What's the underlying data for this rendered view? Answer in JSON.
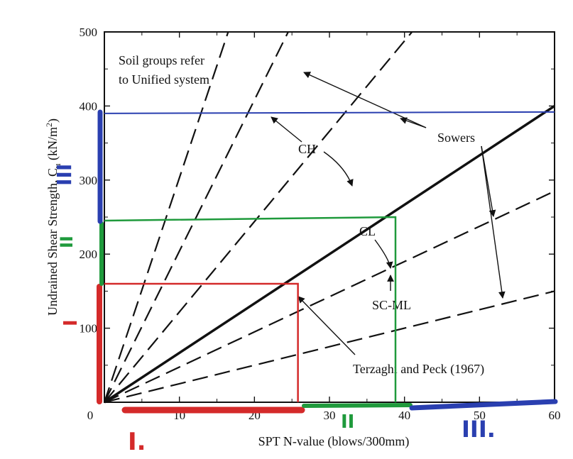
{
  "chart_data": {
    "type": "line",
    "title": "",
    "xlabel": "SPT N-value (blows/300mm)",
    "ylabel": "Undrained Shear Strength, C",
    "ylabel_sub": "u",
    "ylabel_unit_pre": "(kN/m",
    "ylabel_unit_sup": "2",
    "ylabel_unit_post": ")",
    "xlim": [
      0,
      60
    ],
    "ylim": [
      0,
      500
    ],
    "x_ticks": [
      0,
      10,
      20,
      30,
      40,
      50,
      60
    ],
    "y_ticks": [
      0,
      100,
      200,
      300,
      400,
      500
    ],
    "note_lines": [
      "Soil groups refer",
      "to Unified system"
    ],
    "lines": [
      {
        "style": "dashed",
        "x": [
          0,
          16.5
        ],
        "y": [
          0,
          500
        ]
      },
      {
        "style": "dashed",
        "x": [
          0,
          24.5
        ],
        "y": [
          0,
          500
        ]
      },
      {
        "style": "dashed",
        "x": [
          0,
          41
        ],
        "y": [
          0,
          500
        ]
      },
      {
        "style": "dashed",
        "x": [
          0,
          60
        ],
        "y": [
          0,
          285
        ]
      },
      {
        "style": "dashed",
        "x": [
          0,
          60
        ],
        "y": [
          0,
          150
        ]
      },
      {
        "style": "solid",
        "x": [
          0,
          60
        ],
        "y": [
          0,
          400
        ]
      }
    ],
    "region_labels": {
      "ch": "CH",
      "cl": "CL",
      "scml": "SC-ML",
      "sowers": "Sowers",
      "terzaghi": "Terzaghi and Peck (1967)"
    },
    "overlays": {
      "blue_hline_y": 390,
      "green_box": {
        "x": 38.8,
        "y": 250
      },
      "red_box": {
        "x": 25.8,
        "y": 160
      }
    },
    "handwritten": {
      "axis_x_red": "I.",
      "axis_x_green": "II",
      "axis_x_blue": "III.",
      "axis_y_red": "I",
      "axis_y_green": "II",
      "axis_y_blue": "III"
    },
    "colors": {
      "blue": "#2a3fb0",
      "green": "#1f9a3c",
      "red": "#d42a2a",
      "ink": "#000000"
    }
  }
}
